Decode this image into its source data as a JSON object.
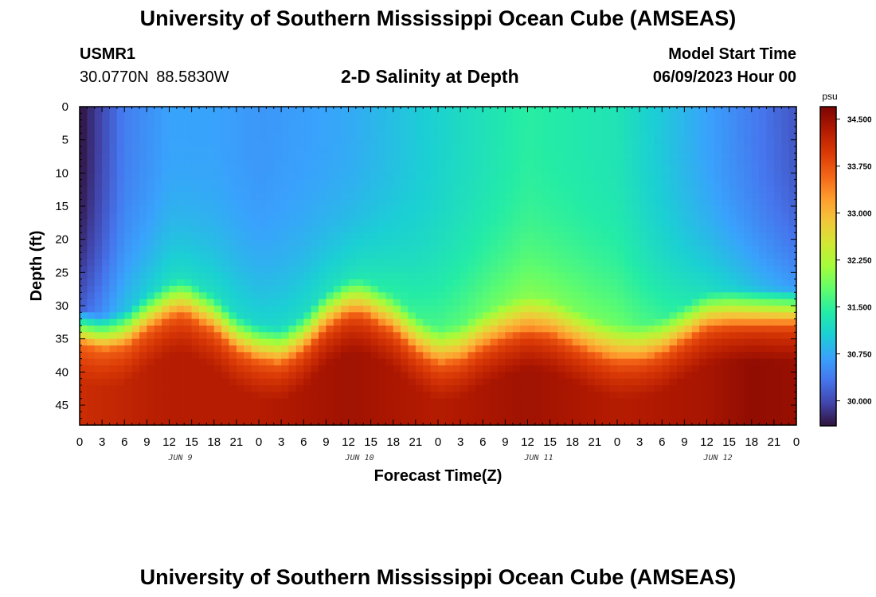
{
  "header": {
    "title": "University of Southern Mississippi Ocean Cube (AMSEAS)",
    "station_id": "USMR1",
    "coordinates": "30.0770N  88.5830W",
    "plot_title": "2-D Salinity at Depth",
    "model_start_label": "Model Start Time",
    "model_start_value": "06/09/2023 Hour 00"
  },
  "footer": {
    "title": "University of Southern Mississippi Ocean Cube (AMSEAS)"
  },
  "chart_data": {
    "type": "heatmap",
    "title": "2-D Salinity at Depth",
    "xlabel": "Forecast Time(Z)",
    "ylabel": "Depth (ft)",
    "x_range_hours": [
      0,
      96
    ],
    "y_range_ft": [
      0,
      48
    ],
    "y_inverted": true,
    "x_tick_labels": [
      "0",
      "3",
      "6",
      "9",
      "12",
      "15",
      "18",
      "21",
      "0",
      "3",
      "6",
      "9",
      "12",
      "15",
      "18",
      "21",
      "0",
      "3",
      "6",
      "9",
      "12",
      "15",
      "18",
      "21",
      "0",
      "3",
      "6",
      "9",
      "12",
      "15",
      "18",
      "21",
      "0"
    ],
    "day_labels": [
      "JUN 9",
      "JUN 10",
      "JUN 11",
      "JUN 12"
    ],
    "y_ticks": [
      0,
      5,
      10,
      15,
      20,
      25,
      30,
      35,
      40,
      45
    ],
    "colorbar": {
      "unit": "psu",
      "ticks": [
        "34.500",
        "33.750",
        "33.000",
        "32.250",
        "31.500",
        "30.750",
        "30.000"
      ],
      "range": [
        29.6,
        34.7
      ],
      "colors": [
        "#30123b",
        "#4145ab",
        "#4675ed",
        "#39a2fc",
        "#1bcfd4",
        "#24eca6",
        "#61fc6c",
        "#a4fc3b",
        "#d1e834",
        "#f3c63a",
        "#fe9b2d",
        "#f36315",
        "#d93806",
        "#b11901",
        "#7a0403"
      ]
    },
    "interface_depth_ft": {
      "hours": [
        0,
        3,
        6,
        9,
        12,
        14,
        18,
        21,
        24,
        27,
        30,
        33,
        36,
        38,
        42,
        45,
        48,
        51,
        54,
        57,
        60,
        63,
        66,
        69,
        72,
        75,
        78,
        81,
        84,
        87,
        90,
        93,
        96
      ],
      "depth": [
        33,
        34,
        33.5,
        31,
        29,
        28.5,
        31,
        34,
        35.5,
        36,
        34,
        30.5,
        28.5,
        28.5,
        31,
        34,
        36,
        35.5,
        33.5,
        32,
        31,
        31.5,
        33,
        34.5,
        35.5,
        35.5,
        34.5,
        32.5,
        30.5,
        30,
        30,
        30,
        30
      ]
    },
    "surface_salinity_psu": {
      "hours": [
        0,
        6,
        12,
        18,
        24,
        36,
        48,
        60,
        72,
        78,
        84,
        90,
        96
      ],
      "values": [
        29.6,
        30.4,
        30.7,
        30.7,
        30.6,
        30.75,
        31.1,
        31.45,
        31.3,
        31.0,
        30.7,
        30.4,
        30.1
      ]
    },
    "deep_salinity_psu": {
      "hours": [
        0,
        12,
        24,
        36,
        48,
        60,
        72,
        84,
        90,
        96
      ],
      "values": [
        34.1,
        34.3,
        34.3,
        34.45,
        34.3,
        34.45,
        34.3,
        34.4,
        34.55,
        34.5
      ]
    }
  }
}
